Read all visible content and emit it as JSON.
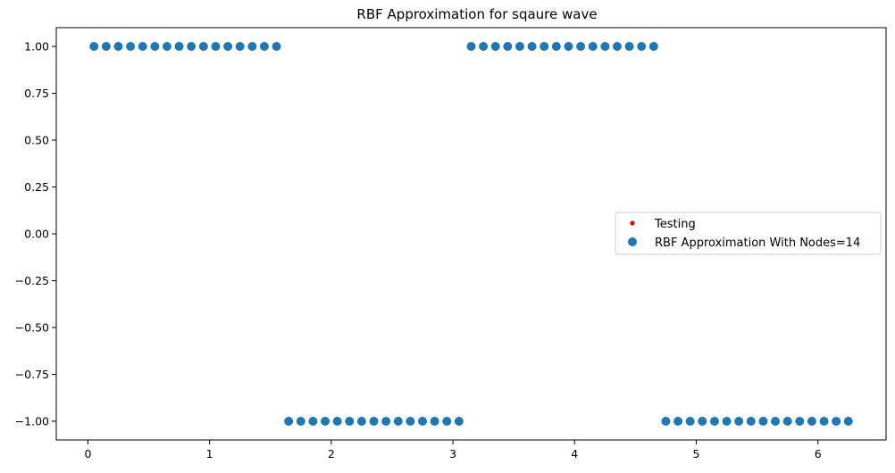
{
  "chart_data": {
    "type": "scatter",
    "title": "RBF Approximation for sqaure wave",
    "xlabel": "",
    "ylabel": "",
    "xlim": [
      -0.26,
      6.56
    ],
    "ylim": [
      -1.1,
      1.1
    ],
    "xticks": [
      0,
      1,
      2,
      3,
      4,
      5,
      6
    ],
    "xtick_labels": [
      "0",
      "1",
      "2",
      "3",
      "4",
      "5",
      "6"
    ],
    "yticks": [
      -1.0,
      -0.75,
      -0.5,
      -0.25,
      0.0,
      0.25,
      0.5,
      0.75,
      1.0
    ],
    "ytick_labels": [
      "−1.00",
      "−0.75",
      "−0.50",
      "−0.25",
      "0.00",
      "0.25",
      "0.50",
      "0.75",
      "1.00"
    ],
    "grid": false,
    "legend_position": "center-right",
    "series": [
      {
        "name": "Testing",
        "color": "#e60000",
        "marker": "small-dot",
        "points": []
      },
      {
        "name": "RBF Approximation With Nodes=14",
        "color": "#1f77b4",
        "marker": "circle",
        "points": [
          [
            0.05,
            1.0
          ],
          [
            0.15,
            1.0
          ],
          [
            0.25,
            1.0
          ],
          [
            0.35,
            1.0
          ],
          [
            0.45,
            1.0
          ],
          [
            0.55,
            1.0
          ],
          [
            0.65,
            1.0
          ],
          [
            0.75,
            1.0
          ],
          [
            0.85,
            1.0
          ],
          [
            0.95,
            1.0
          ],
          [
            1.05,
            1.0
          ],
          [
            1.15,
            1.0
          ],
          [
            1.25,
            1.0
          ],
          [
            1.35,
            1.0
          ],
          [
            1.45,
            1.0
          ],
          [
            1.55,
            1.0
          ],
          [
            1.65,
            -1.0
          ],
          [
            1.75,
            -1.0
          ],
          [
            1.85,
            -1.0
          ],
          [
            1.95,
            -1.0
          ],
          [
            2.05,
            -1.0
          ],
          [
            2.15,
            -1.0
          ],
          [
            2.25,
            -1.0
          ],
          [
            2.35,
            -1.0
          ],
          [
            2.45,
            -1.0
          ],
          [
            2.55,
            -1.0
          ],
          [
            2.65,
            -1.0
          ],
          [
            2.75,
            -1.0
          ],
          [
            2.85,
            -1.0
          ],
          [
            2.95,
            -1.0
          ],
          [
            3.05,
            -1.0
          ],
          [
            3.15,
            1.0
          ],
          [
            3.25,
            1.0
          ],
          [
            3.35,
            1.0
          ],
          [
            3.45,
            1.0
          ],
          [
            3.55,
            1.0
          ],
          [
            3.65,
            1.0
          ],
          [
            3.75,
            1.0
          ],
          [
            3.85,
            1.0
          ],
          [
            3.95,
            1.0
          ],
          [
            4.05,
            1.0
          ],
          [
            4.15,
            1.0
          ],
          [
            4.25,
            1.0
          ],
          [
            4.35,
            1.0
          ],
          [
            4.45,
            1.0
          ],
          [
            4.55,
            1.0
          ],
          [
            4.65,
            1.0
          ],
          [
            4.75,
            -1.0
          ],
          [
            4.85,
            -1.0
          ],
          [
            4.95,
            -1.0
          ],
          [
            5.05,
            -1.0
          ],
          [
            5.15,
            -1.0
          ],
          [
            5.25,
            -1.0
          ],
          [
            5.35,
            -1.0
          ],
          [
            5.45,
            -1.0
          ],
          [
            5.55,
            -1.0
          ],
          [
            5.65,
            -1.0
          ],
          [
            5.75,
            -1.0
          ],
          [
            5.85,
            -1.0
          ],
          [
            5.95,
            -1.0
          ],
          [
            6.05,
            -1.0
          ],
          [
            6.15,
            -1.0
          ],
          [
            6.25,
            -1.0
          ]
        ]
      }
    ]
  }
}
